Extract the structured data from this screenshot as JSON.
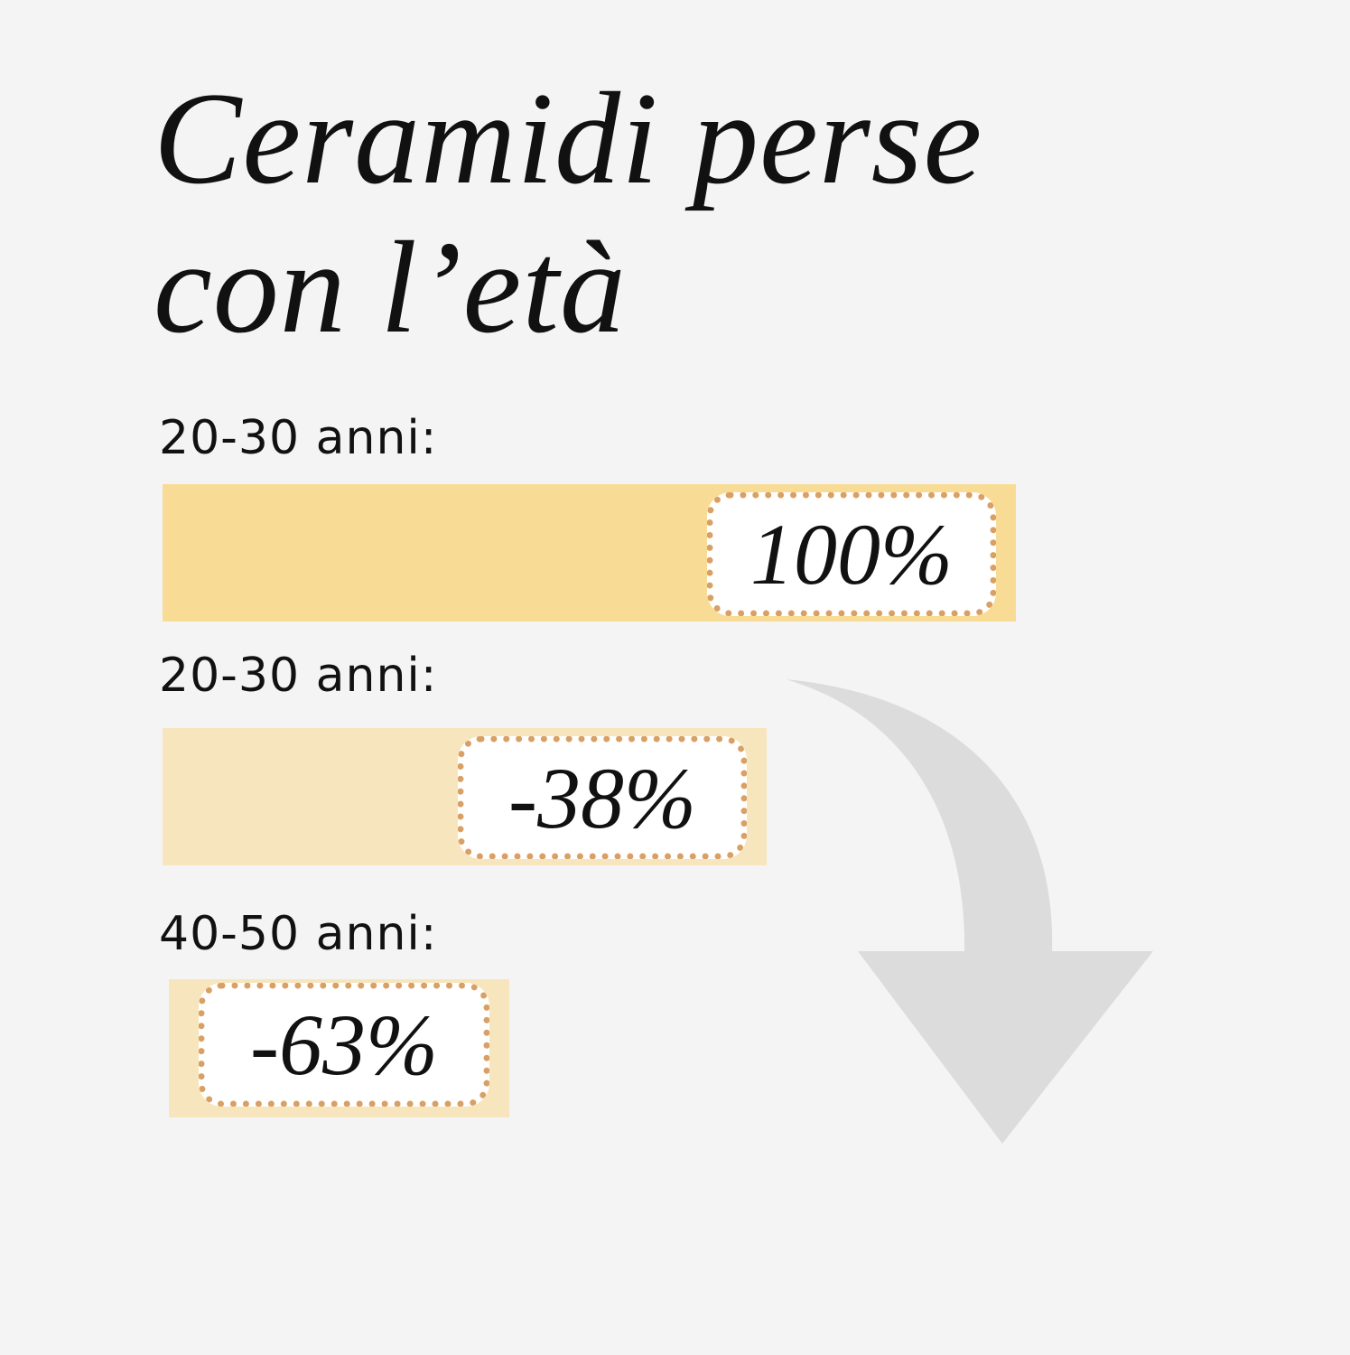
{
  "title": {
    "line1": "Ceramidi perse",
    "line2": "con l’età"
  },
  "colors": {
    "background": "#f4f4f4",
    "bar_full": "#f8dc95",
    "bar_light": "#f7e6bd",
    "badge_border": "#d9a066",
    "arrow": "#dddcdd"
  },
  "chart_data": {
    "type": "bar",
    "orientation": "horizontal",
    "title": "Ceramidi perse con l’età",
    "categories": [
      "20-30 anni:",
      "20-30 anni:",
      "40-50 anni:"
    ],
    "values": [
      100,
      -38,
      -63
    ],
    "data_labels": [
      "100%",
      "-38%",
      "-63%"
    ],
    "grid": false,
    "annotation": "downward-curved-arrow"
  }
}
